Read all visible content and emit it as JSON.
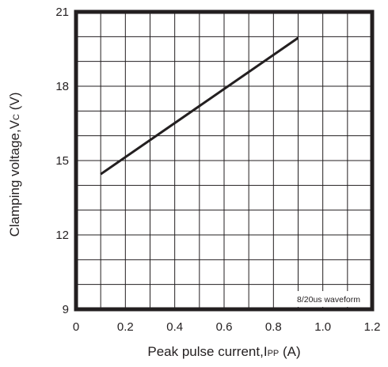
{
  "chart_data": {
    "type": "line",
    "xlabel_main": "Peak pulse current,I",
    "xlabel_sub": "PP",
    "xlabel_unit": " (A)",
    "ylabel_main": "Clamping voltage,V",
    "ylabel_sub": "C",
    "ylabel_unit": " (V)",
    "annotation": "8/20us waveform",
    "xlim": [
      0,
      1.2
    ],
    "ylim": [
      9,
      21
    ],
    "x_ticks": [
      0,
      0.2,
      0.4,
      0.6,
      0.8,
      1.0,
      1.2
    ],
    "x_tick_labels": [
      "0",
      "0.2",
      "0.4",
      "0.6",
      "0.8",
      "1.0",
      "1.2"
    ],
    "y_ticks": [
      9,
      12,
      15,
      18,
      21
    ],
    "y_tick_labels": [
      "9",
      "12",
      "15",
      "18",
      "21"
    ],
    "x_minor_step": 0.1,
    "y_minor_step": 1,
    "grid": true,
    "series": [
      {
        "x": [
          0.1,
          0.9
        ],
        "y": [
          14.45,
          19.95
        ],
        "color": "#231f20"
      }
    ]
  }
}
